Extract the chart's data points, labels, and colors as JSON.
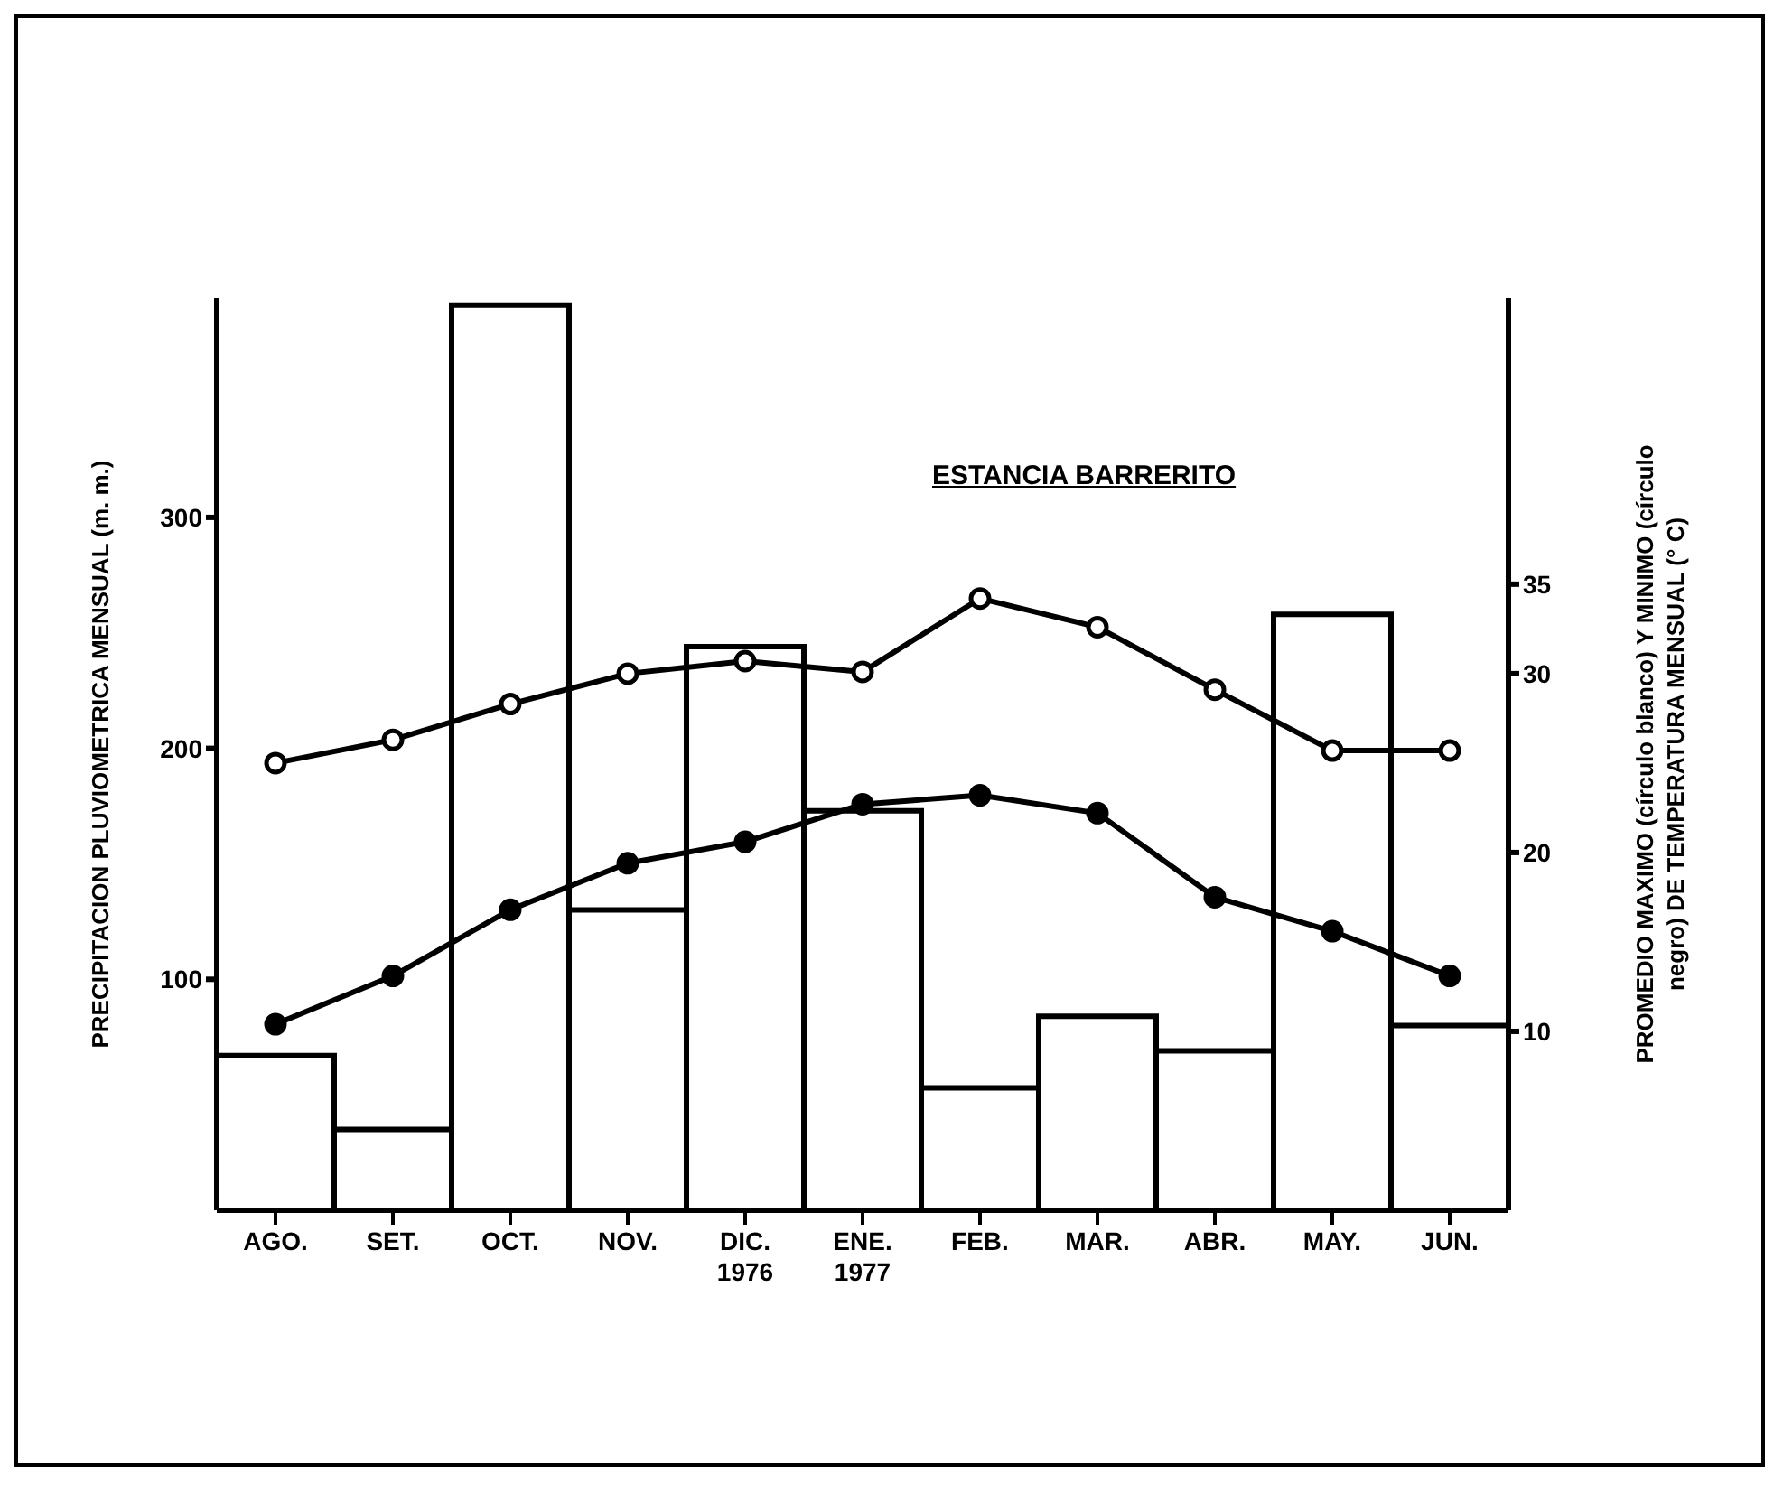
{
  "chart_data": {
    "type": "bar",
    "title": "ESTANCIA BARRERITO",
    "ylabel": "PRECIPITACION PLUVIOMETRICA MENSUAL (m. m.)",
    "y2label": "PROMEDIO MAXIMO (círculo blanco) Y MINIMO (círculo\nnegro) DE TEMPERATURA MENSUAL (° C)",
    "categories": [
      "AGO.",
      "SET.",
      "OCT.",
      "NOV.",
      "DIC.\n1976",
      "ENE.\n1977",
      "FEB.",
      "MAR.",
      "ABR.",
      "MAY.",
      "JUN."
    ],
    "series": [
      {
        "color": "#ffffff",
        "values": [
          67,
          35,
          392,
          130,
          244,
          173,
          53,
          84,
          69,
          258,
          80
        ]
      },
      {
        "type": "line",
        "axis": "y2",
        "color": "#000000",
        "values": [
          25,
          26.3,
          28.3,
          30,
          30.7,
          30.1,
          34.2,
          32.6,
          29.1,
          25.7,
          25.7
        ]
      },
      {
        "type": "line",
        "axis": "y2",
        "color": "#000000",
        "values": [
          10.4,
          13.1,
          16.8,
          19.4,
          20.6,
          22.7,
          23.2,
          22.2,
          17.5,
          15.6,
          13.1
        ]
      }
    ],
    "ylim": [
      0,
      395
    ],
    "yticks": [
      100,
      200,
      300
    ],
    "y2lim": [
      0,
      51
    ],
    "y2ticks": [
      10,
      20,
      30,
      35
    ],
    "marker": "circle",
    "grid": false,
    "legend": false
  }
}
